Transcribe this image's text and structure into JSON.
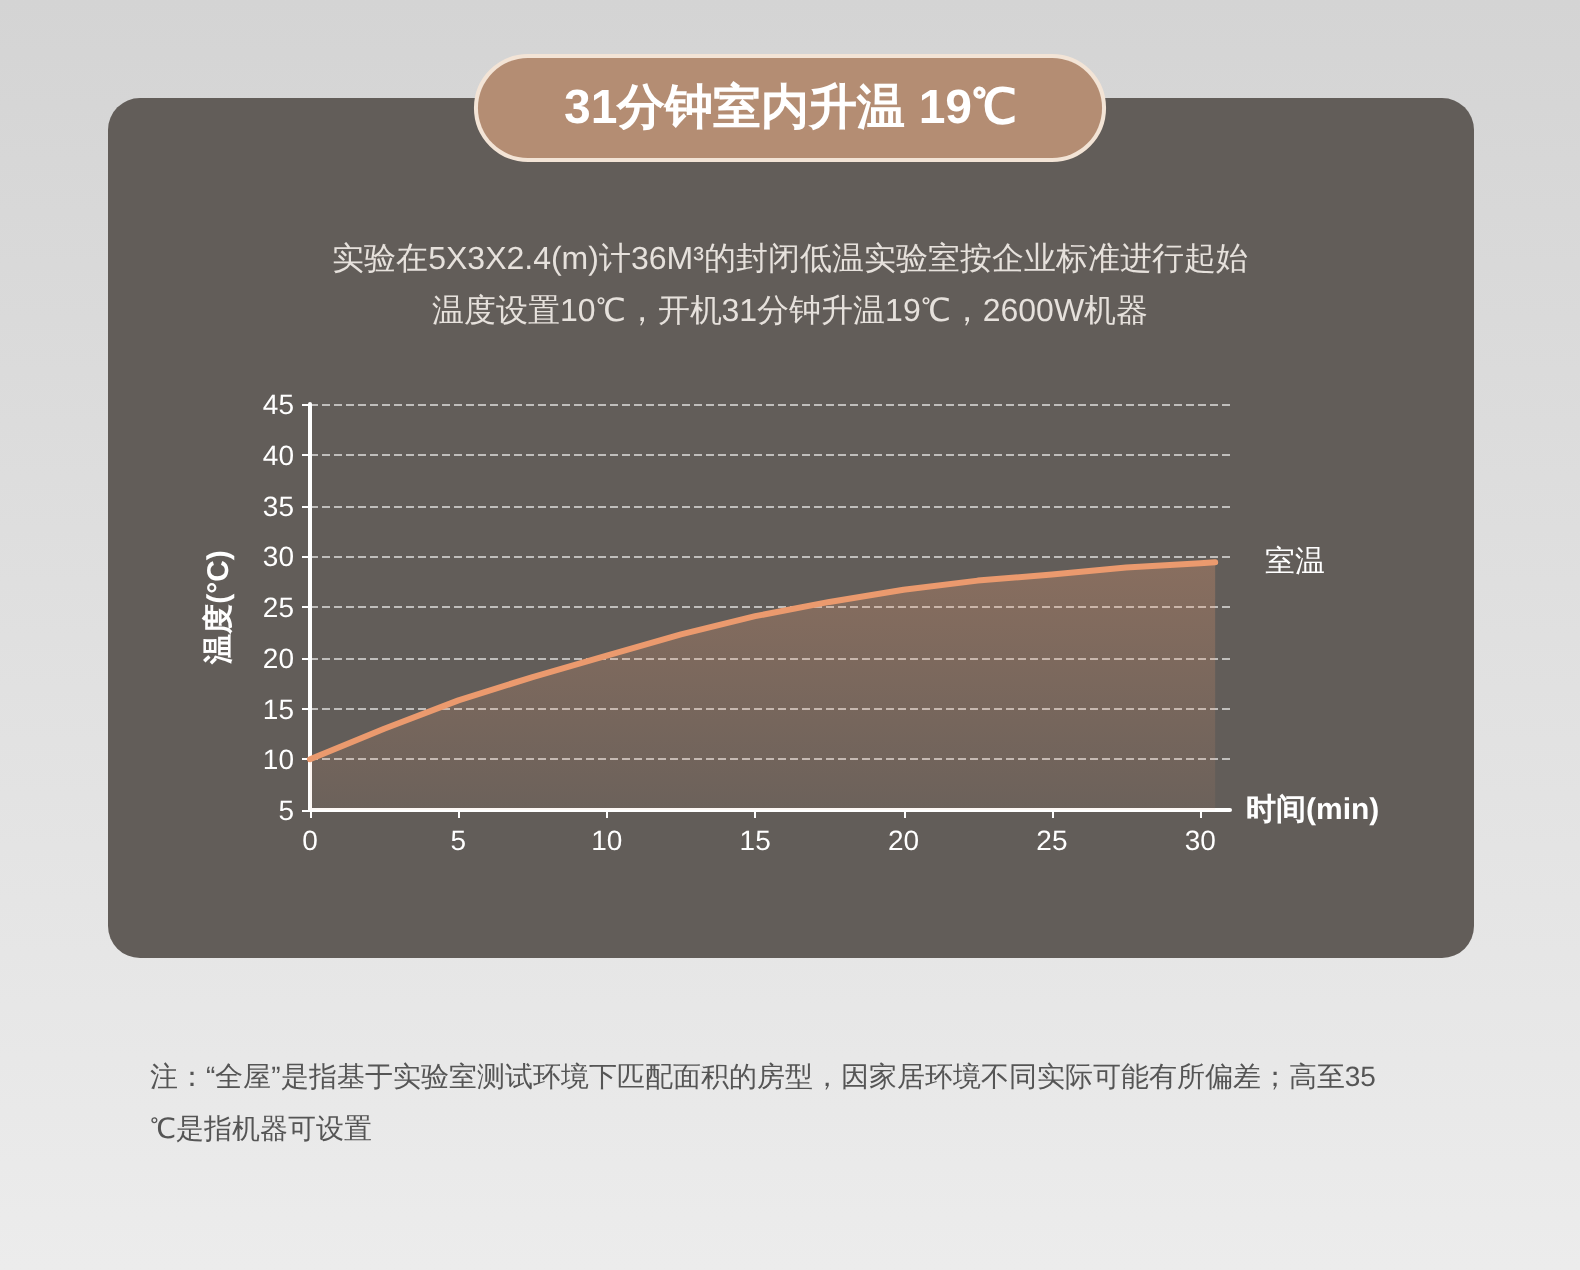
{
  "chart_data": {
    "type": "area",
    "title": "31分钟室内升温 19℃",
    "subtitle": "实验在5X3X2.4(m)计36M³的封闭低温实验室按企业标准进行起始温度设置10℃，开机31分钟升温19℃，2600W机器",
    "xlabel": "时间(min)",
    "ylabel": "温度(°C)",
    "x": [
      0,
      2.5,
      5,
      7.5,
      10,
      12.5,
      15,
      17.5,
      20,
      22.5,
      25,
      27.5,
      30,
      30.5
    ],
    "series": [
      {
        "name": "室温",
        "color": "#eb9a6e",
        "values": [
          10,
          13,
          15.8,
          18.1,
          20.2,
          22.3,
          24.1,
          25.5,
          26.7,
          27.6,
          28.2,
          28.9,
          29.3,
          29.4
        ]
      }
    ],
    "xlim": [
      0,
      31
    ],
    "xticks": [
      0,
      5,
      10,
      15,
      20,
      25,
      30
    ],
    "ylim": [
      5,
      45
    ],
    "yticks": [
      5,
      10,
      15,
      20,
      25,
      30,
      35,
      40,
      45
    ],
    "grid": "y",
    "legend": false,
    "marker": "none",
    "line_style": "solid",
    "annotations": [
      "注：“全屋”是指基于实验室测试环境下匹配面积的房型，因家居环境不同实际可能有所偏差；高至35℃是指机器可设置"
    ]
  }
}
